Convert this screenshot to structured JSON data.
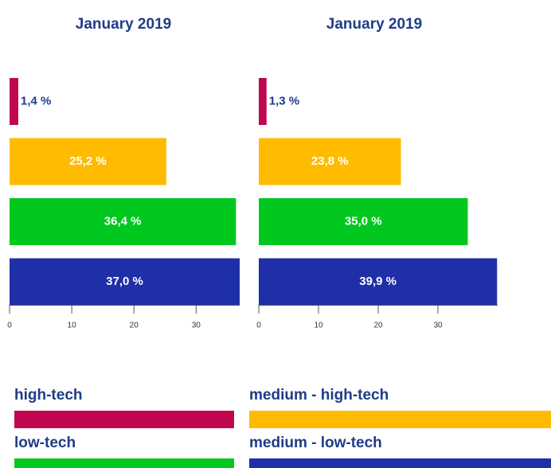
{
  "chart_data": [
    {
      "type": "bar",
      "title": "January 2019",
      "values": [
        1.4,
        25.2,
        36.4,
        37.0
      ],
      "value_labels": [
        "1,4 %",
        "25,2 %",
        "36,4 %",
        "37,0 %"
      ],
      "xlim": [
        0,
        37
      ],
      "xticks": [
        0,
        10,
        20,
        30
      ]
    },
    {
      "type": "bar",
      "title": "January 2019",
      "values": [
        1.3,
        23.8,
        35.0,
        39.9
      ],
      "value_labels": [
        "1,3 %",
        "23,8 %",
        "35,0 %",
        "39,9 %"
      ],
      "xlim": [
        0,
        40
      ],
      "xticks": [
        0,
        10,
        20,
        30
      ]
    }
  ],
  "legend": [
    {
      "name": "high-tech",
      "color": "#c0064e"
    },
    {
      "name": "medium - high-tech",
      "color": "#ffbb00"
    },
    {
      "name": "low-tech",
      "color": "#00c81e"
    },
    {
      "name": "medium - low-tech",
      "color": "#1f2fa8"
    }
  ]
}
